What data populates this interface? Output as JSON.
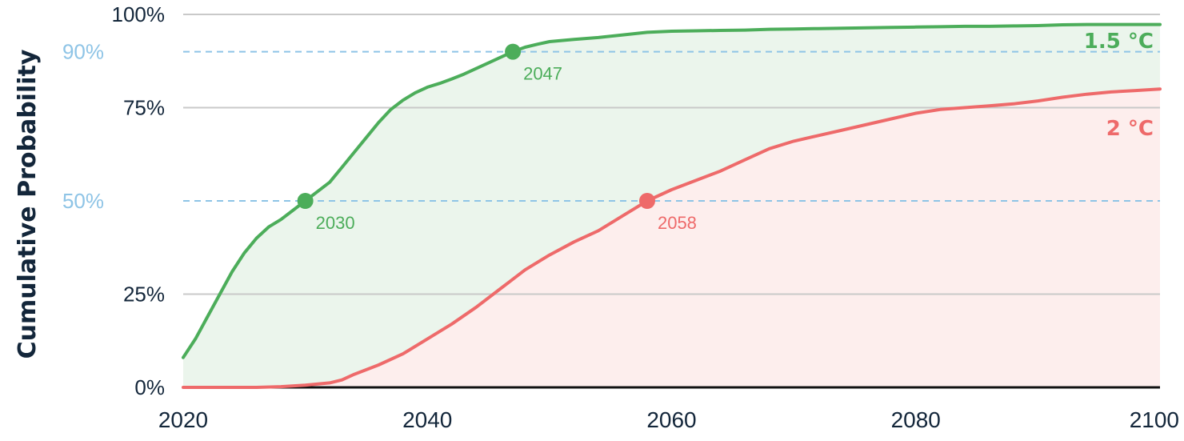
{
  "chart_data": {
    "type": "line",
    "ylabel": "Cumulative Probability",
    "xlim": [
      2020,
      2100
    ],
    "ylim": [
      0,
      100
    ],
    "x_ticks": [
      {
        "value": 2020,
        "label": "2020"
      },
      {
        "value": 2040,
        "label": "2040"
      },
      {
        "value": 2060,
        "label": "2060"
      },
      {
        "value": 2080,
        "label": "2080"
      },
      {
        "value": 2100,
        "label": "2100"
      }
    ],
    "y_ticks": [
      {
        "value": 0,
        "label": "0%"
      },
      {
        "value": 25,
        "label": "25%"
      },
      {
        "value": 75,
        "label": "75%"
      },
      {
        "value": 100,
        "label": "100%"
      }
    ],
    "reference_lines": [
      {
        "value": 50,
        "label": "50%",
        "color": "#8ec4e6"
      },
      {
        "value": 90,
        "label": "90%",
        "color": "#8ec4e6"
      }
    ],
    "grid": true,
    "series": [
      {
        "name": "1.5 °C",
        "color": "#4cad5a",
        "fill": "#ebf5ec",
        "x": [
          2020,
          2021,
          2022,
          2023,
          2024,
          2025,
          2026,
          2027,
          2028,
          2029,
          2030,
          2031,
          2032,
          2033,
          2034,
          2035,
          2036,
          2037,
          2038,
          2039,
          2040,
          2041,
          2042,
          2043,
          2044,
          2045,
          2046,
          2047,
          2048,
          2049,
          2050,
          2052,
          2054,
          2056,
          2058,
          2060,
          2062,
          2064,
          2066,
          2068,
          2070,
          2072,
          2074,
          2076,
          2078,
          2080,
          2082,
          2084,
          2086,
          2088,
          2090,
          2092,
          2094,
          2096,
          2098,
          2100
        ],
        "values": [
          8,
          13,
          19,
          25,
          31,
          36,
          40,
          43,
          45,
          47.5,
          50,
          52.5,
          55,
          59,
          63,
          67,
          71,
          74.5,
          77,
          79,
          80.5,
          81.5,
          82.7,
          84,
          85.5,
          87,
          88.5,
          90,
          91.2,
          92,
          92.7,
          93.3,
          93.8,
          94.5,
          95.2,
          95.5,
          95.6,
          95.7,
          95.8,
          96,
          96.1,
          96.2,
          96.3,
          96.4,
          96.5,
          96.6,
          96.7,
          96.8,
          96.8,
          96.9,
          97,
          97.2,
          97.3,
          97.3,
          97.3,
          97.3
        ]
      },
      {
        "name": "2 °C",
        "color": "#ee6a6a",
        "fill": "#fdeeed",
        "x": [
          2020,
          2024,
          2026,
          2028,
          2030,
          2032,
          2033,
          2034,
          2036,
          2038,
          2040,
          2042,
          2044,
          2046,
          2048,
          2050,
          2052,
          2054,
          2056,
          2058,
          2060,
          2062,
          2064,
          2066,
          2068,
          2070,
          2072,
          2074,
          2076,
          2078,
          2080,
          2082,
          2084,
          2086,
          2088,
          2090,
          2092,
          2094,
          2096,
          2098,
          2100
        ],
        "values": [
          0,
          0,
          0,
          0.2,
          0.6,
          1.2,
          2,
          3.5,
          6,
          9,
          13,
          17,
          21.5,
          26.5,
          31.5,
          35.5,
          39,
          42,
          46,
          50,
          53,
          55.5,
          58,
          61,
          64,
          66,
          67.5,
          69,
          70.5,
          72,
          73.5,
          74.5,
          75,
          75.5,
          76,
          76.8,
          77.8,
          78.6,
          79.2,
          79.6,
          80
        ]
      }
    ],
    "markers": [
      {
        "series": "1.5 °C",
        "x": 2030,
        "y": 50,
        "label": "2030",
        "color": "#4cad5a"
      },
      {
        "series": "1.5 °C",
        "x": 2047,
        "y": 90,
        "label": "2047",
        "color": "#4cad5a"
      },
      {
        "series": "2 °C",
        "x": 2058,
        "y": 50,
        "label": "2058",
        "color": "#ee6a6a"
      }
    ],
    "colors": {
      "text": "#13263a",
      "grid": "#c9c9c9",
      "axis": "#111111",
      "reference": "#8ec4e6"
    }
  }
}
